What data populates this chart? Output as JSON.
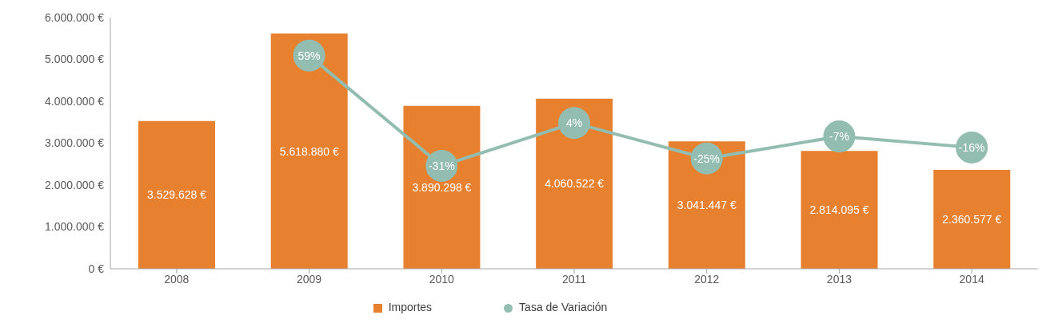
{
  "chart_data": {
    "type": "bar",
    "categories": [
      "2008",
      "2009",
      "2010",
      "2011",
      "2012",
      "2013",
      "2014"
    ],
    "series": [
      {
        "name": "Importes",
        "color": "#e8812f",
        "values": [
          3529628,
          5618880,
          3890298,
          4060522,
          3041447,
          2814095,
          2360577
        ],
        "value_labels": [
          "3.529.628 €",
          "5.618.880 €",
          "3.890.298 €",
          "4.060.522 €",
          "3.041.447 €",
          "2.814.095 €",
          "2.360.577 €"
        ]
      },
      {
        "name": "Tasa de Variación",
        "type": "line",
        "axis": "y2",
        "color": "#93bdb0",
        "marker": "circle",
        "values": [
          null,
          59,
          -31,
          4,
          -25,
          -7,
          -16
        ],
        "value_labels": [
          null,
          "59%",
          "-31%",
          "4%",
          "-25%",
          "-7%",
          "-16%"
        ]
      }
    ],
    "ylim": [
      0,
      6000000
    ],
    "yticks": [
      {
        "value": 0,
        "label": "0 €"
      },
      {
        "value": 1000000,
        "label": "1.000.000 €"
      },
      {
        "value": 2000000,
        "label": "2.000.000 €"
      },
      {
        "value": 3000000,
        "label": "3.000.000 €"
      },
      {
        "value": 4000000,
        "label": "4.000.000 €"
      },
      {
        "value": 5000000,
        "label": "5.000.000 €"
      },
      {
        "value": 6000000,
        "label": "6.000.000 €"
      }
    ],
    "y2lim": [
      -115,
      90
    ],
    "grid": false,
    "legend": "bottom"
  }
}
